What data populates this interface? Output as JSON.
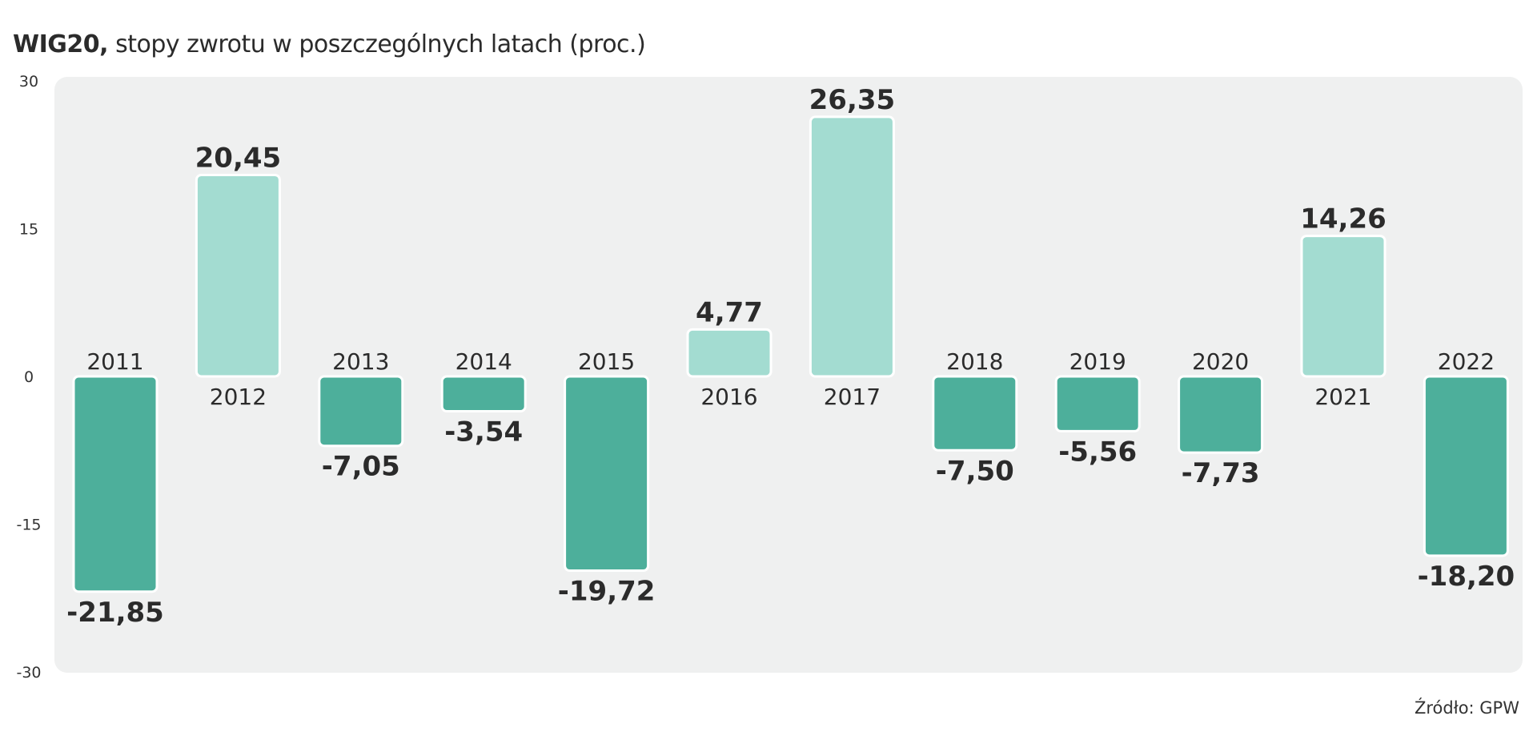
{
  "title": {
    "bold": "WIG20,",
    "rest": " stopy zwrotu w poszczególnych latach (proc.)"
  },
  "source": "Źródło: GPW",
  "colors": {
    "positive": "#a3dcd1",
    "negative": "#4daf9b",
    "plot_bg": "#eff0f0",
    "bar_outline": "#ffffff"
  },
  "chart_data": {
    "type": "bar",
    "title": "WIG20, stopy zwrotu w poszczególnych latach (proc.)",
    "xlabel": "",
    "ylabel": "",
    "categories": [
      "2011",
      "2012",
      "2013",
      "2014",
      "2015",
      "2016",
      "2017",
      "2018",
      "2019",
      "2020",
      "2021",
      "2022"
    ],
    "values": [
      -21.85,
      20.45,
      -7.05,
      -3.54,
      -19.72,
      4.77,
      26.35,
      -7.5,
      -5.56,
      -7.73,
      14.26,
      -18.2
    ],
    "value_labels": [
      "-21,85",
      "20,45",
      "-7,05",
      "-3,54",
      "-19,72",
      "4,77",
      "26,35",
      "-7,50",
      "-5,56",
      "-7,73",
      "14,26",
      "-18,20"
    ],
    "ylim": [
      -30,
      30
    ],
    "yticks": [
      30,
      15,
      0,
      -15,
      -30
    ],
    "ytick_labels": [
      "30",
      "15",
      "0",
      "-15",
      "-30"
    ],
    "grid": false,
    "legend": "none"
  }
}
